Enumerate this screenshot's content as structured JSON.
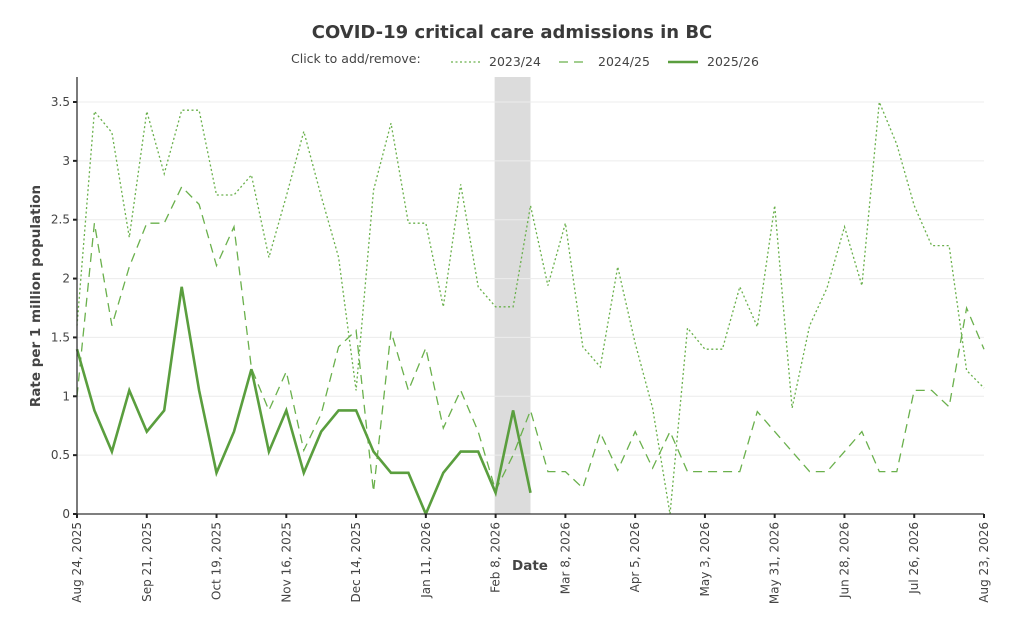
{
  "chart_data": {
    "type": "line",
    "title": "COVID-19 critical care admissions in BC",
    "legend_prompt": "Click to add/remove:",
    "legend_position": "top-center",
    "xlabel": "Date",
    "ylabel": "Rate per 1 million population",
    "ylim": [
      0,
      3.7
    ],
    "yticks": [
      0,
      0.5,
      1,
      1.5,
      2,
      2.5,
      3,
      3.5
    ],
    "ytick_labels": [
      "0",
      "0.5",
      "1",
      "1.5",
      "2",
      "2.5",
      "3",
      "3.5"
    ],
    "x_weeks": 53,
    "xtick_week_index": [
      0,
      4,
      8,
      12,
      16,
      20,
      24,
      28,
      32,
      36,
      40,
      44,
      48,
      52
    ],
    "xtick_labels": [
      "Aug 24, 2025",
      "Sep 21, 2025",
      "Oct 19, 2025",
      "Nov 16, 2025",
      "Dec 14, 2025",
      "Jan 11, 2026",
      "Feb 8, 2026",
      "Mar 8, 2026",
      "Apr 5, 2026",
      "May 3, 2026",
      "May 31, 2026",
      "Jun 28, 2026",
      "Jul 26, 2026",
      "Aug 23, 2026"
    ],
    "grid": true,
    "shaded_band": {
      "from_week": 24,
      "to_week": 26,
      "color": "#dcdcdc"
    },
    "series": [
      {
        "name": "2023/24",
        "style": "dotted",
        "color": "#6ab04c",
        "values": [
          1.6,
          3.42,
          3.24,
          2.35,
          3.42,
          2.89,
          3.43,
          3.43,
          2.71,
          2.71,
          2.88,
          2.18,
          2.7,
          3.25,
          2.7,
          2.18,
          1.05,
          2.75,
          3.32,
          2.47,
          2.47,
          1.76,
          2.8,
          1.93,
          1.76,
          1.76,
          2.62,
          1.94,
          2.47,
          1.42,
          1.25,
          2.1,
          1.45,
          0.9,
          0.0,
          1.58,
          1.4,
          1.4,
          1.93,
          1.59,
          2.62,
          0.9,
          1.6,
          1.92,
          2.44,
          1.94,
          3.5,
          3.14,
          2.62,
          2.28,
          2.28,
          1.22,
          1.07
        ]
      },
      {
        "name": "2024/25",
        "style": "dashed",
        "color": "#6ab04c",
        "values": [
          1.0,
          2.47,
          1.6,
          2.1,
          2.47,
          2.47,
          2.78,
          2.63,
          2.11,
          2.44,
          1.24,
          0.88,
          1.21,
          0.54,
          0.85,
          1.42,
          1.56,
          0.19,
          1.55,
          1.05,
          1.41,
          0.73,
          1.05,
          0.7,
          0.2,
          0.5,
          0.88,
          0.36,
          0.36,
          0.22,
          0.69,
          0.37,
          0.7,
          0.39,
          0.7,
          0.36,
          0.36,
          0.36,
          0.36,
          0.87,
          0.7,
          0.53,
          0.36,
          0.36,
          0.53,
          0.7,
          0.36,
          0.36,
          1.05,
          1.05,
          0.91,
          1.75,
          1.4
        ]
      },
      {
        "name": "2025/26",
        "style": "solid",
        "color": "#5a9e3e",
        "values": [
          1.4,
          0.88,
          0.53,
          1.05,
          0.7,
          0.88,
          1.93,
          1.05,
          0.35,
          0.7,
          1.23,
          0.53,
          0.88,
          0.35,
          0.7,
          0.88,
          0.88,
          0.53,
          0.35,
          0.35,
          0.0,
          0.35,
          0.53,
          0.53,
          0.18,
          0.88,
          0.18
        ]
      }
    ]
  }
}
